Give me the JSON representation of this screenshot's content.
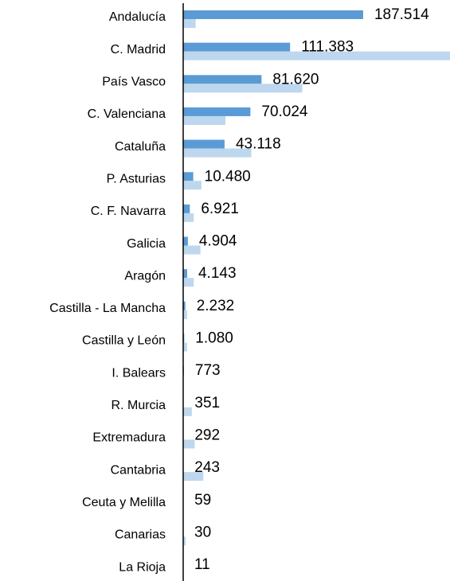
{
  "chart_data": {
    "type": "bar",
    "orientation": "horizontal",
    "categories": [
      "Andalucía",
      "C. Madrid",
      "País Vasco",
      "C. Valenciana",
      "Cataluña",
      "P. Asturias",
      "C. F. Navarra",
      "Galicia",
      "Aragón",
      "Castilla - La Mancha",
      "Castilla y León",
      "I. Balears",
      "R. Murcia",
      "Extremadura",
      "Cantabria",
      "Ceuta y Melilla",
      "Canarias",
      "La Rioja"
    ],
    "series": [
      {
        "color": "#5b9bd5",
        "values": [
          187514,
          111383,
          81620,
          70024,
          43118,
          10480,
          6921,
          4904,
          4143,
          2232,
          1080,
          773,
          351,
          292,
          243,
          59,
          30,
          11
        ],
        "value_labels": [
          "187.514",
          "111.383",
          "81.620",
          "70.024",
          "43.118",
          "10.480",
          "6.921",
          "4.904",
          "4.143",
          "2.232",
          "1.080",
          "773",
          "351",
          "292",
          "243",
          "59",
          "30",
          "11"
        ]
      },
      {
        "color": "#bdd7ee",
        "values": [
          13000,
          278000,
          124000,
          44000,
          71000,
          19000,
          11000,
          18000,
          11000,
          4000,
          4000,
          500,
          9000,
          12000,
          21000,
          300,
          2500,
          300
        ]
      }
    ],
    "xlim": [
      0,
      278000
    ]
  }
}
